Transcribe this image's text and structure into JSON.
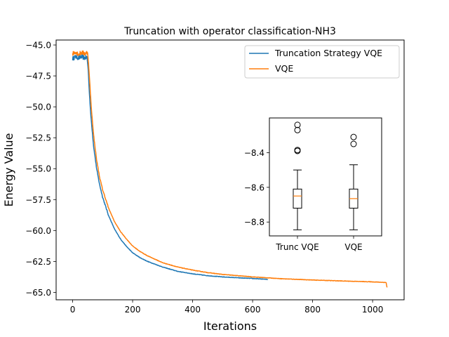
{
  "chart_data": [
    {
      "type": "line",
      "title": "Truncation with operator classification-NH3",
      "xlabel": "Iterations",
      "ylabel": "Energy Value",
      "xlim": [
        -55,
        1105
      ],
      "ylim": [
        -65.6,
        -44.6
      ],
      "xticks": [
        0,
        200,
        400,
        600,
        800,
        1000
      ],
      "xtick_labels": [
        "0",
        "200",
        "400",
        "600",
        "800",
        "1000"
      ],
      "yticks": [
        -45.0,
        -47.5,
        -50.0,
        -52.5,
        -55.0,
        -57.5,
        -60.0,
        -62.5,
        -65.0
      ],
      "ytick_labels": [
        "−45.0",
        "−47.5",
        "−50.0",
        "−52.5",
        "−55.0",
        "−57.5",
        "−60.0",
        "−62.5",
        "−65.0"
      ],
      "legend_position": "top-right",
      "series": [
        {
          "name": "Truncation Strategy VQE",
          "color": "#1f77b4",
          "points": [
            [
              0,
              -46.1
            ],
            [
              10,
              -45.95
            ],
            [
              20,
              -46.05
            ],
            [
              30,
              -45.95
            ],
            [
              40,
              -46.05
            ],
            [
              48,
              -46.0
            ],
            [
              52,
              -47.0
            ],
            [
              55,
              -48.5
            ],
            [
              60,
              -50.5
            ],
            [
              70,
              -53.2
            ],
            [
              80,
              -55.0
            ],
            [
              90,
              -56.3
            ],
            [
              100,
              -57.3
            ],
            [
              120,
              -58.8
            ],
            [
              140,
              -59.9
            ],
            [
              160,
              -60.7
            ],
            [
              180,
              -61.3
            ],
            [
              200,
              -61.8
            ],
            [
              225,
              -62.2
            ],
            [
              250,
              -62.5
            ],
            [
              300,
              -62.95
            ],
            [
              350,
              -63.3
            ],
            [
              400,
              -63.5
            ],
            [
              450,
              -63.65
            ],
            [
              500,
              -63.75
            ],
            [
              550,
              -63.82
            ],
            [
              600,
              -63.88
            ],
            [
              650,
              -63.95
            ]
          ]
        },
        {
          "name": "VQE",
          "color": "#ff7f0e",
          "points": [
            [
              0,
              -45.7
            ],
            [
              10,
              -45.55
            ],
            [
              20,
              -45.75
            ],
            [
              30,
              -45.6
            ],
            [
              40,
              -45.7
            ],
            [
              50,
              -45.6
            ],
            [
              53,
              -46.5
            ],
            [
              57,
              -48.0
            ],
            [
              62,
              -50.0
            ],
            [
              70,
              -52.3
            ],
            [
              80,
              -54.3
            ],
            [
              90,
              -55.7
            ],
            [
              100,
              -56.7
            ],
            [
              120,
              -58.2
            ],
            [
              140,
              -59.3
            ],
            [
              160,
              -60.1
            ],
            [
              180,
              -60.7
            ],
            [
              200,
              -61.25
            ],
            [
              225,
              -61.7
            ],
            [
              250,
              -62.05
            ],
            [
              300,
              -62.6
            ],
            [
              350,
              -62.95
            ],
            [
              400,
              -63.2
            ],
            [
              450,
              -63.4
            ],
            [
              500,
              -63.55
            ],
            [
              550,
              -63.65
            ],
            [
              600,
              -63.75
            ],
            [
              700,
              -63.9
            ],
            [
              800,
              -64.0
            ],
            [
              900,
              -64.08
            ],
            [
              1000,
              -64.15
            ],
            [
              1045,
              -64.2
            ],
            [
              1048,
              -64.6
            ]
          ]
        }
      ]
    },
    {
      "type": "box",
      "title": "",
      "categories": [
        "Trunc VQE",
        "VQE"
      ],
      "ylim": [
        -8.88,
        -8.2
      ],
      "yticks": [
        -8.4,
        -8.6,
        -8.8
      ],
      "ytick_labels": [
        "−8.4",
        "−8.6",
        "−8.8"
      ],
      "boxes": [
        {
          "label": "Trunc VQE",
          "whisker_low": -8.845,
          "q1": -8.72,
          "median": -8.65,
          "q3": -8.61,
          "whisker_high": -8.5,
          "fliers": [
            -8.24,
            -8.27,
            -8.385,
            -8.39
          ]
        },
        {
          "label": "VQE",
          "whisker_low": -8.845,
          "q1": -8.72,
          "median": -8.665,
          "q3": -8.61,
          "whisker_high": -8.47,
          "fliers": [
            -8.31,
            -8.35
          ]
        }
      ]
    }
  ]
}
